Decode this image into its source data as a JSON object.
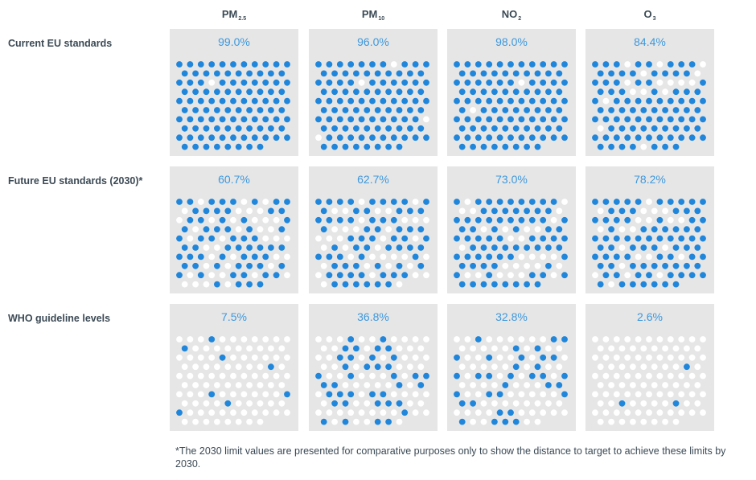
{
  "columns": [
    {
      "main": "PM",
      "sub": "2.5"
    },
    {
      "main": "PM",
      "sub": "10"
    },
    {
      "main": "NO",
      "sub": "2"
    },
    {
      "main": "O",
      "sub": "3"
    }
  ],
  "rows": [
    {
      "label": "Current EU standards",
      "labels": [
        "99.0%",
        "96.0%",
        "98.0%",
        "84.4%"
      ]
    },
    {
      "label": "Future EU standards (2030)*",
      "labels": [
        "60.7%",
        "62.7%",
        "73.0%",
        "78.2%"
      ]
    },
    {
      "label": "WHO guideline levels",
      "labels": [
        "7.5%",
        "36.8%",
        "32.8%",
        "2.6%"
      ]
    }
  ],
  "footnote": "*The 2030 limit values are presented for comparative purposes only to show the distance to target to achieve these limits by 2030.",
  "colors": {
    "filled": "#1f86db",
    "empty": "#ffffff",
    "cell_bg": "#e6e6e6",
    "pct_text": "#3d98dd",
    "label_text": "#3c4a55"
  },
  "chart_data": {
    "type": "waffle",
    "categories": [
      "PM2.5",
      "PM10",
      "NO2",
      "O3"
    ],
    "series": [
      {
        "name": "Current EU standards",
        "values": [
          99.0,
          96.0,
          98.0,
          84.4
        ]
      },
      {
        "name": "Future EU standards (2030)*",
        "values": [
          60.7,
          62.7,
          73.0,
          78.2
        ]
      },
      {
        "name": "WHO guideline levels",
        "values": [
          7.5,
          36.8,
          32.8,
          2.6
        ]
      }
    ],
    "dots_per_cell": 103
  }
}
